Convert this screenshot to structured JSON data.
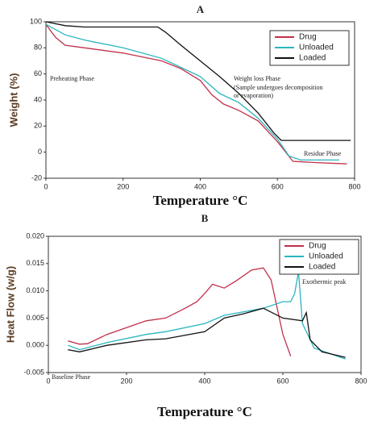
{
  "chart_data": [
    {
      "type": "line",
      "title": "A",
      "x_label": "Temperature °C",
      "y_label": "Weight (%)",
      "xlim": [
        0,
        800
      ],
      "xticks": [
        0,
        200,
        400,
        600,
        800
      ],
      "ylim": [
        -20,
        100
      ],
      "yticks": [
        -20,
        0,
        20,
        40,
        60,
        80,
        100
      ],
      "legend": "upper right",
      "annotations": [
        "Preheating Phase",
        "Weight loss Phase",
        "(Sample undergoes decomposition",
        "or evaporation)",
        "Residue Phase"
      ],
      "series": [
        {
          "name": "Drug",
          "color": "#c0304a",
          "x": [
            0,
            25,
            50,
            100,
            200,
            300,
            350,
            400,
            430,
            460,
            500,
            550,
            600,
            640,
            700,
            780
          ],
          "values": [
            98,
            88,
            82,
            80,
            76,
            70,
            64,
            55,
            44,
            37,
            32,
            24,
            8,
            -7,
            -8,
            -9
          ]
        },
        {
          "name": "Unloaded",
          "color": "#2ab5c0",
          "x": [
            0,
            50,
            100,
            200,
            300,
            350,
            400,
            450,
            500,
            550,
            600,
            630,
            660,
            700,
            760
          ],
          "values": [
            98,
            90,
            86,
            80,
            72,
            65,
            58,
            45,
            38,
            26,
            10,
            -3,
            -6,
            -6,
            -6
          ]
        },
        {
          "name": "Loaded",
          "color": "#111111",
          "x": [
            0,
            50,
            100,
            200,
            290,
            310,
            350,
            400,
            450,
            500,
            550,
            590,
            610,
            700,
            790
          ],
          "values": [
            100,
            97,
            96,
            96,
            96,
            92,
            82,
            70,
            58,
            45,
            30,
            15,
            9,
            9,
            9
          ]
        }
      ]
    },
    {
      "type": "line",
      "title": "B",
      "x_label": "Temperature °C",
      "y_label": "Heat Flow (w/g)",
      "xlim": [
        0,
        800
      ],
      "xticks": [
        0,
        200,
        400,
        600,
        800
      ],
      "ylim": [
        -0.005,
        0.02
      ],
      "yticks": [
        -0.005,
        {
          "value": 0,
          "label": "0.000"
        },
        0.005,
        {
          "value": 0.01,
          "label": "0.010"
        },
        0.015,
        {
          "value": 0.02,
          "label": "0.020"
        }
      ],
      "legend": "upper right",
      "annotations": [
        "Exothermic peak",
        "Baseline Phase"
      ],
      "series": [
        {
          "name": "Drug",
          "color": "#c0304a",
          "x": [
            50,
            80,
            100,
            150,
            250,
            300,
            350,
            380,
            400,
            420,
            450,
            480,
            520,
            550,
            570,
            600,
            620
          ],
          "values": [
            0.0008,
            0.0002,
            0.0003,
            0.002,
            0.0045,
            0.005,
            0.0068,
            0.008,
            0.0095,
            0.0112,
            0.0105,
            0.0118,
            0.0138,
            0.0142,
            0.012,
            0.002,
            -0.002
          ]
        },
        {
          "name": "Unloaded",
          "color": "#2ab5c0",
          "x": [
            50,
            80,
            150,
            250,
            300,
            400,
            450,
            550,
            600,
            620,
            630,
            640,
            650,
            680,
            760
          ],
          "values": [
            0,
            -0.0008,
            0.0005,
            0.002,
            0.0025,
            0.004,
            0.0055,
            0.0068,
            0.008,
            0.008,
            0.0095,
            0.0135,
            0.004,
            -0.0005,
            -0.0025
          ]
        },
        {
          "name": "Loaded",
          "color": "#111111",
          "x": [
            50,
            80,
            150,
            250,
            300,
            400,
            450,
            500,
            550,
            600,
            650,
            660,
            670,
            700,
            760
          ],
          "values": [
            -0.0008,
            -0.0012,
            0,
            0.001,
            0.0012,
            0.0025,
            0.005,
            0.0058,
            0.0068,
            0.005,
            0.0045,
            0.006,
            0.001,
            -0.0012,
            -0.0022
          ]
        }
      ]
    }
  ]
}
